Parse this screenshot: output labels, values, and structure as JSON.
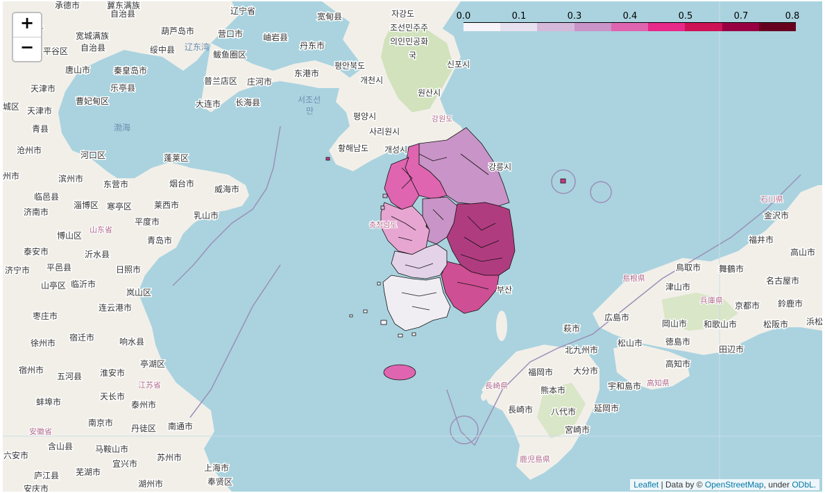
{
  "controls": {
    "zoom_in": "+",
    "zoom_out": "−"
  },
  "legend": {
    "ticks": [
      "0.0",
      "0.1",
      "0.3",
      "0.4",
      "0.5",
      "0.7",
      "0.8"
    ],
    "colors": [
      "#f7f4f9",
      "#e7e1ef",
      "#d4b9da",
      "#c994c7",
      "#df65b0",
      "#e7298a",
      "#ce1256",
      "#980043",
      "#67001f"
    ]
  },
  "attribution": {
    "leaflet": "Leaflet",
    "sep1": " | Data by © ",
    "osm": "OpenStreetMap",
    "sep2": ", under ",
    "odbl": "ODbL."
  },
  "colors": {
    "water": "#aad3df",
    "land": "#f2efe9",
    "green": "#c8dfb0",
    "border": "#9b8fb7"
  },
  "labels": {
    "china": [
      "承德市",
      "自治县",
      "营子",
      "宽城满族",
      "自治县",
      "平谷区",
      "唐山市",
      "秦皇岛市",
      "天津市",
      "曹妃甸区",
      "城区",
      "天津市",
      "乐亭县",
      "青县",
      "沧州市",
      "河口区",
      "州市",
      "滨州市",
      "东营市",
      "临邑县",
      "淄博区",
      "寒亭区",
      "济南市",
      "山东省",
      "博山区",
      "泰安市",
      "沂水县",
      "济宁市",
      "平邑县",
      "日照市",
      "临沂市",
      "山亭区",
      "岚山区",
      "连云港市",
      "枣庄市",
      "宿迁市",
      "响水县",
      "徐州市",
      "宿州市",
      "五河县",
      "淮安市",
      "亭湖区",
      "江苏省",
      "天长市",
      "蚌埠市",
      "泰州市",
      "南京市",
      "丹徒区",
      "南通市",
      "安徽省",
      "含山县",
      "马鞍山市",
      "宜兴市",
      "苏州市",
      "上海市",
      "芜湖市",
      "湖州市",
      "奉贤区",
      "庐江县",
      "安庆市",
      "葫芦岛市",
      "营口市",
      "绥中县",
      "辽东湾",
      "鲅鱼圈区",
      "普兰店区",
      "庄河市",
      "大连市",
      "长海县",
      "渤海",
      "蓬莱区",
      "烟台市",
      "威海市",
      "莱西市",
      "乳山市",
      "平度市",
      "青岛市",
      "宽甸县",
      "岫岩县",
      "丹东市",
      "东港市",
      "阜新县",
      "辽宁省",
      "新民市",
      "恩宇",
      "宁陵区",
      "山亭区",
      "临沂市"
    ],
    "korea": [
      "자강도",
      "조선민주주의인민공화국",
      "평안북도",
      "개천시",
      "서조선만",
      "평양시",
      "사리원시",
      "황해남도",
      "개성시",
      "원산시",
      "신포시",
      "강원도",
      "강릉시",
      "충청남도",
      "부산"
    ],
    "japan": [
      "石川県",
      "金沢市",
      "福井市",
      "名古屋市",
      "浜松",
      "鳥取市",
      "舞鶴市",
      "島根県",
      "津山市",
      "兵庫県",
      "京都市",
      "鈴鹿市",
      "広島市",
      "岡山市",
      "和歌山市",
      "松阪市",
      "北九州市",
      "松山市",
      "徳島市",
      "田辺市",
      "大分市",
      "高知市",
      "福岡市",
      "熊本市",
      "宇和島市",
      "高知県",
      "長崎県",
      "長崎市",
      "八代市",
      "延岡市",
      "宮崎市",
      "鹿児島県"
    ]
  }
}
